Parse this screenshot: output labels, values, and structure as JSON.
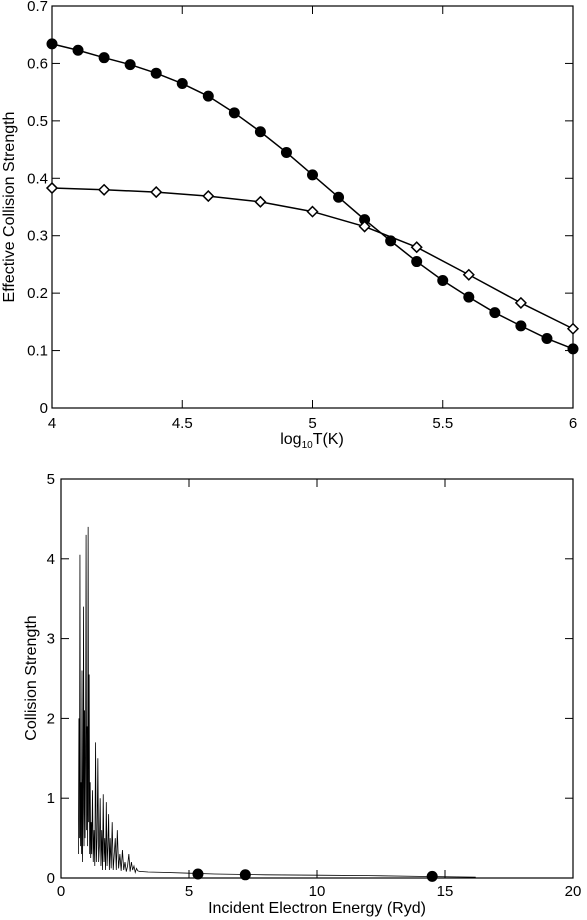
{
  "chart_data": [
    {
      "type": "line",
      "title": "",
      "ylabel": "Effective Collision Strength",
      "xlabel": {
        "prefix": "log",
        "sub": "10",
        "suffix": "T(K)"
      },
      "xlim": [
        4,
        6
      ],
      "ylim": [
        0,
        0.7
      ],
      "xticks": [
        4,
        4.5,
        5,
        5.5,
        6
      ],
      "xtick_labels": [
        "4",
        "4.5",
        "5",
        "5.5",
        "6"
      ],
      "yticks": [
        0,
        0.1,
        0.2,
        0.3,
        0.4,
        0.5,
        0.6,
        0.7
      ],
      "ytick_labels": [
        "0",
        "0.1",
        "0.2",
        "0.3",
        "0.4",
        "0.5",
        "0.6",
        "0.7"
      ],
      "grid": false,
      "series": [
        {
          "marker": "filled-circle",
          "color": "#000000",
          "x": [
            4.0,
            4.1,
            4.2,
            4.3,
            4.4,
            4.5,
            4.6,
            4.7,
            4.8,
            4.9,
            5.0,
            5.1,
            5.2,
            5.3,
            5.4,
            5.5,
            5.6,
            5.7,
            5.8,
            5.9,
            6.0
          ],
          "y": [
            0.634,
            0.623,
            0.61,
            0.598,
            0.583,
            0.565,
            0.543,
            0.514,
            0.481,
            0.445,
            0.406,
            0.367,
            0.328,
            0.291,
            0.255,
            0.222,
            0.193,
            0.166,
            0.143,
            0.121,
            0.103
          ]
        },
        {
          "marker": "open-diamond",
          "color": "#000000",
          "x": [
            4.0,
            4.2,
            4.4,
            4.6,
            4.8,
            5.0,
            5.2,
            5.4,
            5.6,
            5.8,
            6.0
          ],
          "y": [
            0.383,
            0.38,
            0.376,
            0.369,
            0.359,
            0.342,
            0.316,
            0.28,
            0.232,
            0.183,
            0.138
          ]
        }
      ]
    },
    {
      "type": "line",
      "title": "",
      "xlabel": "Incident Electron Energy (Ryd)",
      "ylabel": "Collision Strength",
      "xlim": [
        0,
        20
      ],
      "ylim": [
        0,
        5
      ],
      "xticks": [
        0,
        5,
        10,
        15,
        20
      ],
      "xtick_labels": [
        "0",
        "5",
        "10",
        "15",
        "20"
      ],
      "yticks": [
        0,
        1,
        2,
        3,
        4,
        5
      ],
      "ytick_labels": [
        "0",
        "1",
        "2",
        "3",
        "4",
        "5"
      ],
      "grid": false,
      "series": [
        {
          "style": "thin-line",
          "color": "#000000",
          "x": [
            0.68,
            0.7,
            0.72,
            0.74,
            0.76,
            0.78,
            0.8,
            0.82,
            0.84,
            0.86,
            0.88,
            0.9,
            0.92,
            0.94,
            0.96,
            0.98,
            1.0,
            1.02,
            1.04,
            1.06,
            1.08,
            1.1,
            1.12,
            1.14,
            1.16,
            1.18,
            1.2,
            1.23,
            1.26,
            1.29,
            1.32,
            1.35,
            1.38,
            1.41,
            1.44,
            1.47,
            1.5,
            1.53,
            1.56,
            1.59,
            1.62,
            1.65,
            1.68,
            1.71,
            1.74,
            1.77,
            1.8,
            1.83,
            1.86,
            1.89,
            1.92,
            1.96,
            2.0,
            2.04,
            2.08,
            2.12,
            2.16,
            2.2,
            2.25,
            2.3,
            2.35,
            2.4,
            2.45,
            2.5,
            2.55,
            2.6,
            2.65,
            2.7,
            2.75,
            2.8,
            2.85,
            2.9,
            2.95,
            3.0,
            3.1,
            3.2,
            3.4,
            4.0,
            5.0,
            6.0,
            8.0,
            10.0,
            12.0,
            14.0,
            16.2
          ],
          "y": [
            0.3,
            2.0,
            0.5,
            4.05,
            0.4,
            1.2,
            0.3,
            2.6,
            0.2,
            0.9,
            3.4,
            0.4,
            2.1,
            0.5,
            1.6,
            4.3,
            0.6,
            1.9,
            0.4,
            4.4,
            0.7,
            2.55,
            0.3,
            1.2,
            0.25,
            0.7,
            0.3,
            1.1,
            0.2,
            0.6,
            0.15,
            1.7,
            0.2,
            0.5,
            1.5,
            0.2,
            0.4,
            1.0,
            0.15,
            0.6,
            0.1,
            1.05,
            0.2,
            0.5,
            0.1,
            0.95,
            0.15,
            0.4,
            0.8,
            0.1,
            0.5,
            0.12,
            0.7,
            0.1,
            0.3,
            0.5,
            0.1,
            0.6,
            0.12,
            0.3,
            0.09,
            0.35,
            0.1,
            0.2,
            0.08,
            0.15,
            0.3,
            0.08,
            0.2,
            0.1,
            0.15,
            0.07,
            0.12,
            0.09,
            0.08,
            0.08,
            0.075,
            0.07,
            0.06,
            0.05,
            0.04,
            0.035,
            0.03,
            0.02,
            0.01
          ]
        },
        {
          "marker": "filled-circle",
          "color": "#000000",
          "x": [
            5.35,
            7.2,
            14.5
          ],
          "y": [
            0.05,
            0.04,
            0.02
          ]
        }
      ]
    }
  ]
}
